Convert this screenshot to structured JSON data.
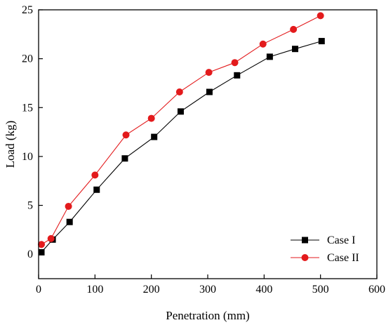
{
  "chart_data": {
    "type": "line",
    "xlabel": "Penetration (mm)",
    "ylabel": "Load (kg)",
    "xlim": [
      0,
      600
    ],
    "ylim": [
      -2.5,
      25
    ],
    "xticks": [
      0,
      100,
      200,
      300,
      400,
      500,
      600
    ],
    "yticks": [
      0,
      5,
      10,
      15,
      20,
      25
    ],
    "grid": false,
    "legend_position": "bottom-right",
    "series": [
      {
        "name": "Case I",
        "color": "#000000",
        "marker": "square",
        "x": [
          5,
          25,
          55,
          103,
          153,
          205,
          252,
          303,
          352,
          410,
          455,
          502
        ],
        "y": [
          0.2,
          1.5,
          3.3,
          6.6,
          9.8,
          12.0,
          14.6,
          16.6,
          18.3,
          20.2,
          21.0,
          21.8
        ]
      },
      {
        "name": "Case II",
        "color": "#e31a1c",
        "marker": "circle",
        "x": [
          5,
          22,
          53,
          100,
          155,
          200,
          250,
          302,
          348,
          398,
          452,
          500
        ],
        "y": [
          1.0,
          1.6,
          4.9,
          8.1,
          12.2,
          13.9,
          16.6,
          18.6,
          19.6,
          21.5,
          23.0,
          24.4
        ]
      }
    ]
  }
}
